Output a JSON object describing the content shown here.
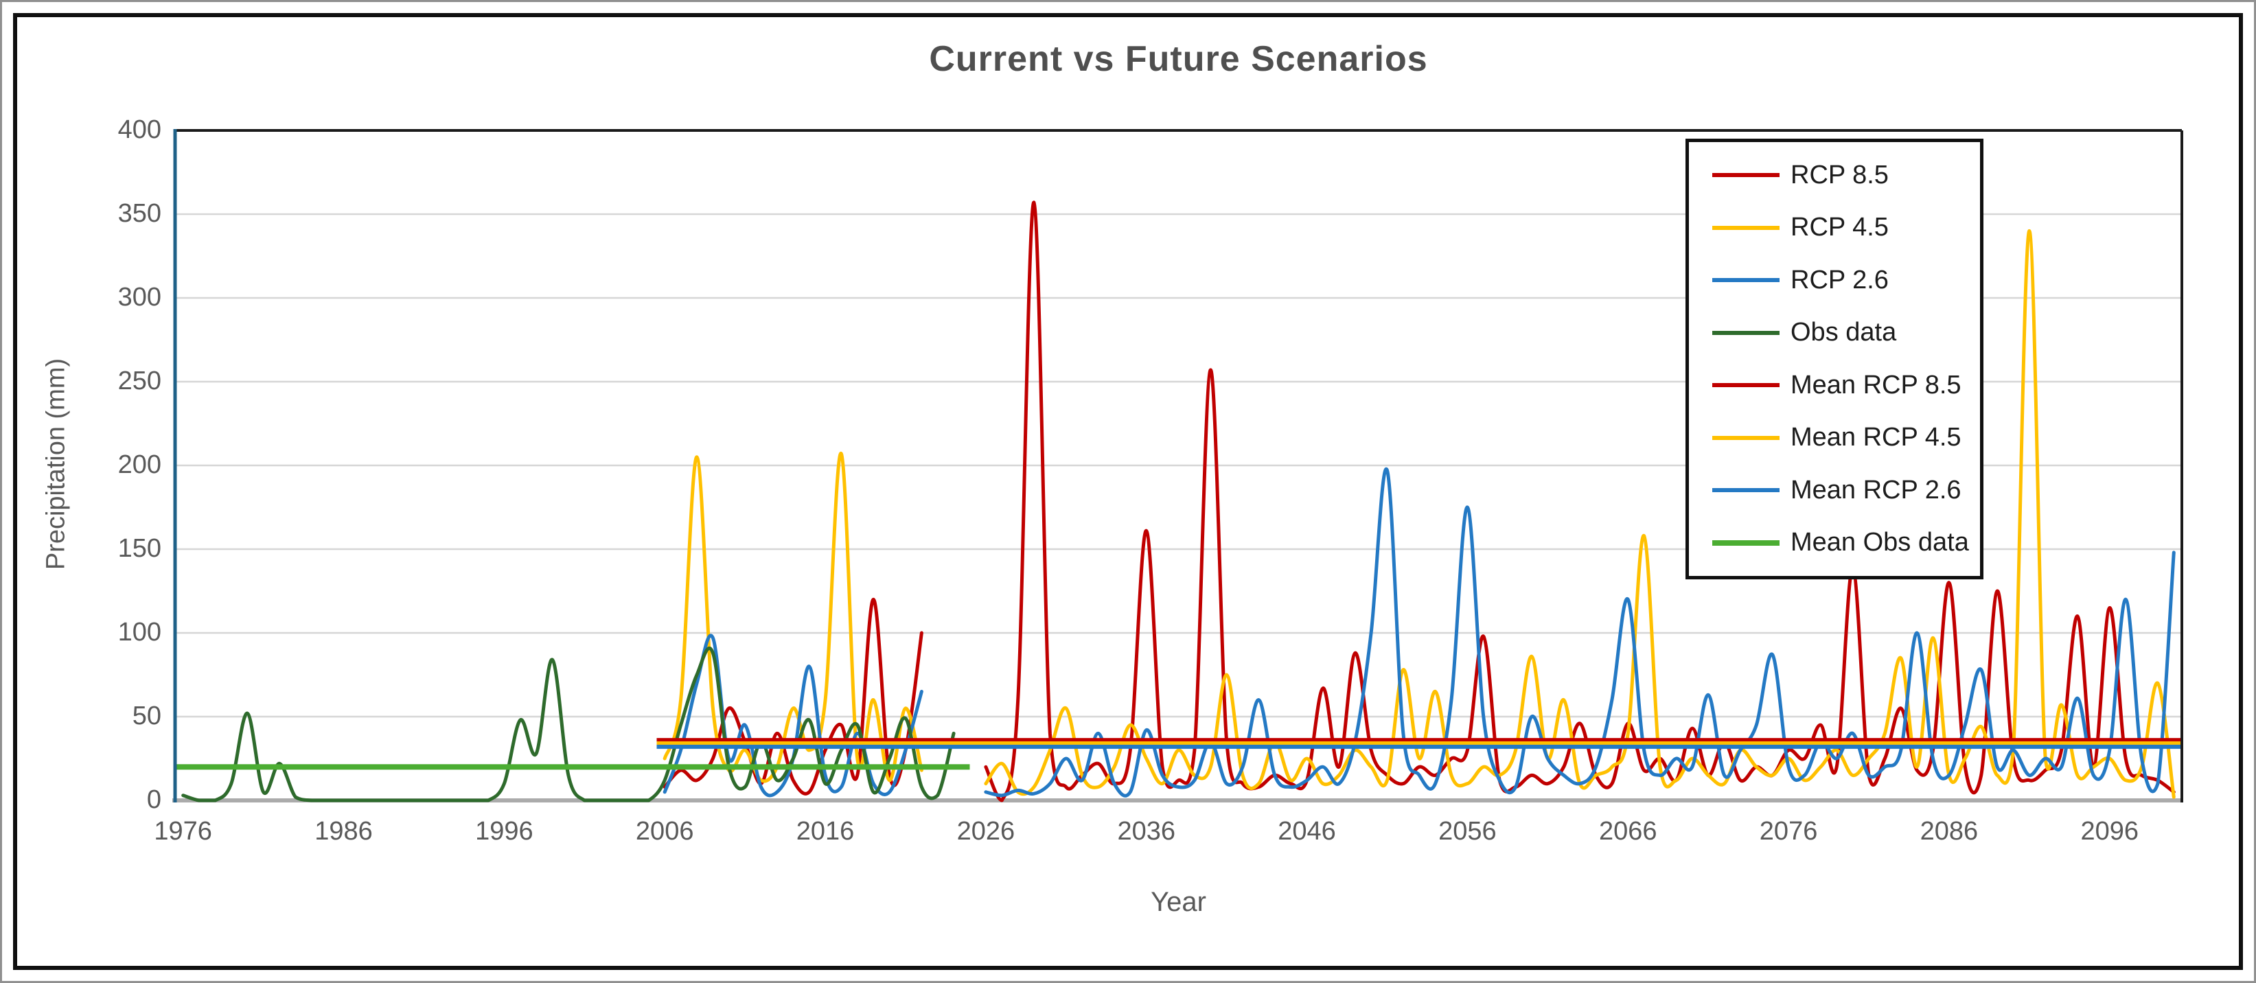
{
  "chart_data": {
    "type": "line",
    "title": "Current vs Future Scenarios",
    "xlabel": "Year",
    "ylabel": "Precipitation (mm)",
    "ylim": [
      0,
      400
    ],
    "y_ticks": [
      0,
      50,
      100,
      150,
      200,
      250,
      300,
      350,
      400
    ],
    "x_ticks": [
      1976,
      1986,
      1996,
      2006,
      2016,
      2026,
      2036,
      2046,
      2056,
      2066,
      2076,
      2086,
      2096
    ],
    "x_range": [
      1976,
      2100
    ],
    "grid": true,
    "legend_position": "inside-top-right",
    "colors": {
      "rcp85": "#C00000",
      "rcp45": "#FFC000",
      "rcp26": "#2479C4",
      "obs": "#2E6B2C",
      "mean_obs": "#4BAD32",
      "gridline": "#D6D6D6",
      "baseline": "#ABABAB",
      "y_axis_line": "#1F6188",
      "plot_border": "#1a1a1a",
      "text": "#595959",
      "frame": "#101010"
    },
    "series": [
      {
        "name": "RCP 8.5",
        "color": "#C00000",
        "kind": "line",
        "start_year": 2006,
        "values": [
          8,
          18,
          12,
          25,
          55,
          35,
          10,
          40,
          12,
          5,
          30,
          45,
          15,
          120,
          15,
          30,
          100,
          null,
          null,
          null,
          20,
          0,
          60,
          357,
          40,
          8,
          15,
          22,
          10,
          30,
          161,
          20,
          12,
          30,
          257,
          35,
          10,
          8,
          15,
          10,
          12,
          67,
          20,
          88,
          30,
          15,
          10,
          20,
          15,
          25,
          30,
          98,
          12,
          8,
          15,
          10,
          20,
          46,
          15,
          10,
          46,
          18,
          25,
          12,
          43,
          15,
          35,
          12,
          20,
          15,
          30,
          25,
          45,
          20,
          139,
          15,
          25,
          55,
          18,
          30,
          130,
          20,
          15,
          125,
          25,
          12,
          18,
          30,
          110,
          20,
          115,
          25,
          15,
          12,
          5
        ]
      },
      {
        "name": "RCP 4.5",
        "color": "#FFC000",
        "kind": "line",
        "start_year": 2006,
        "values": [
          25,
          60,
          205,
          55,
          18,
          30,
          12,
          20,
          55,
          30,
          60,
          207,
          25,
          60,
          12,
          55,
          18,
          null,
          null,
          null,
          10,
          22,
          5,
          8,
          30,
          55,
          15,
          8,
          20,
          45,
          25,
          10,
          30,
          15,
          20,
          75,
          15,
          10,
          35,
          12,
          25,
          10,
          15,
          30,
          20,
          12,
          78,
          25,
          65,
          15,
          10,
          20,
          15,
          30,
          86,
          25,
          60,
          10,
          15,
          20,
          40,
          158,
          20,
          12,
          25,
          15,
          10,
          30,
          20,
          15,
          25,
          12,
          20,
          30,
          15,
          25,
          40,
          85,
          20,
          97,
          15,
          25,
          44,
          15,
          30,
          340,
          25,
          57,
          15,
          20,
          25,
          12,
          20,
          70,
          2
        ]
      },
      {
        "name": "RCP 2.6",
        "color": "#2479C4",
        "kind": "line",
        "start_year": 2006,
        "values": [
          5,
          30,
          70,
          97,
          25,
          45,
          8,
          5,
          25,
          80,
          15,
          8,
          40,
          10,
          5,
          30,
          65,
          null,
          null,
          null,
          5,
          3,
          6,
          4,
          10,
          25,
          12,
          40,
          10,
          5,
          42,
          15,
          8,
          12,
          35,
          10,
          20,
          60,
          15,
          8,
          12,
          20,
          10,
          35,
          100,
          197,
          40,
          15,
          10,
          60,
          175,
          50,
          12,
          8,
          50,
          25,
          15,
          10,
          20,
          60,
          120,
          30,
          15,
          25,
          20,
          63,
          15,
          30,
          45,
          87,
          20,
          15,
          35,
          25,
          40,
          15,
          20,
          30,
          100,
          25,
          15,
          45,
          78,
          20,
          30,
          15,
          25,
          20,
          61,
          15,
          30,
          120,
          25,
          10,
          148
        ]
      },
      {
        "name": "Obs data",
        "color": "#2E6B2C",
        "kind": "line",
        "start_year": 1976,
        "values": [
          3,
          0,
          0,
          10,
          52,
          5,
          22,
          2,
          0,
          0,
          0,
          0,
          0,
          0,
          0,
          0,
          0,
          0,
          0,
          0,
          10,
          48,
          28,
          84,
          15,
          0,
          0,
          0,
          0,
          0,
          12,
          45,
          75,
          88,
          20,
          8,
          35,
          12,
          25,
          48,
          10,
          30,
          45,
          5,
          25,
          49,
          8,
          3,
          40
        ]
      },
      {
        "name": "Mean RCP 8.5",
        "color": "#C00000",
        "kind": "mean",
        "value": 36,
        "span": [
          2006,
          2100
        ]
      },
      {
        "name": "Mean RCP 4.5",
        "color": "#FFC000",
        "kind": "mean",
        "value": 34,
        "span": [
          2006,
          2100
        ]
      },
      {
        "name": "Mean RCP 2.6",
        "color": "#2479C4",
        "kind": "mean",
        "value": 32,
        "span": [
          2006,
          2100
        ]
      },
      {
        "name": "Mean Obs data",
        "color": "#4BAD32",
        "kind": "mean",
        "value": 20,
        "span": [
          1976,
          2025
        ]
      }
    ]
  }
}
